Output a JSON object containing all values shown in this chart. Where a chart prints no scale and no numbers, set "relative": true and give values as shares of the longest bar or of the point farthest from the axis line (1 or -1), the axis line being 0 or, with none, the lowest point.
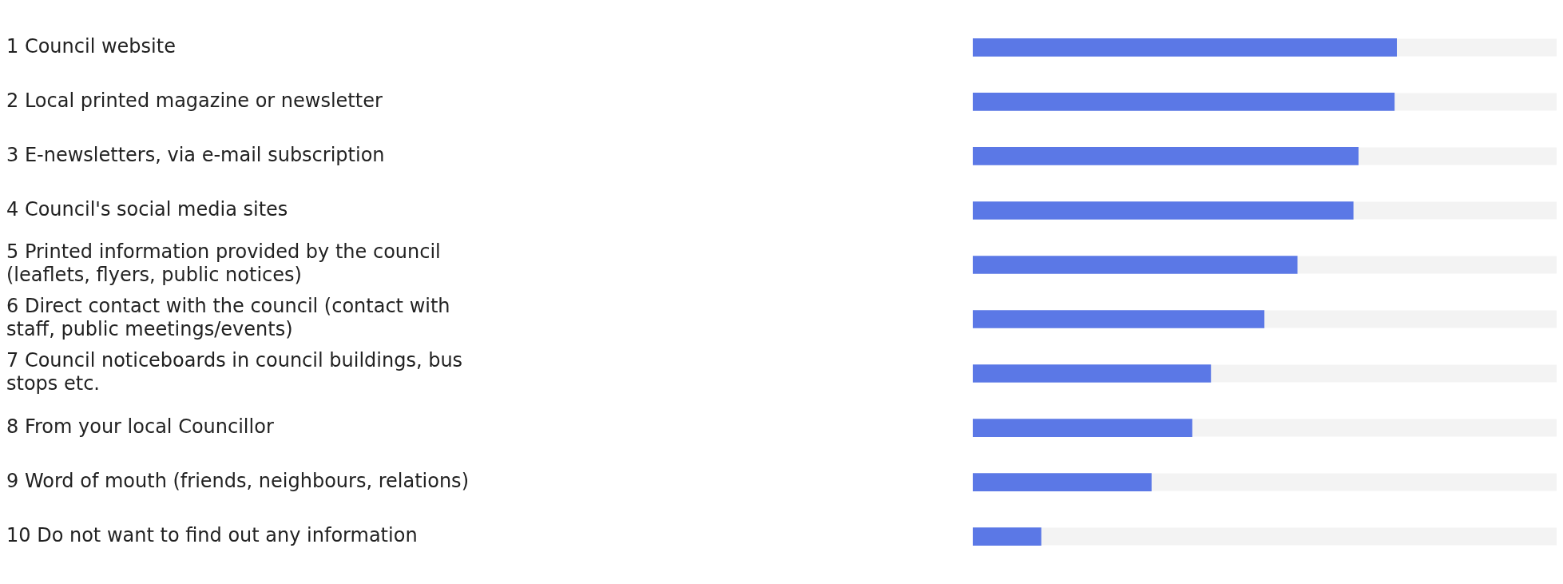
{
  "chart_data": {
    "type": "bar",
    "orientation": "horizontal",
    "relative": true,
    "categories": [
      "1 Council website",
      "2 Local printed magazine or newsletter",
      "3 E-newsletters, via e-mail subscription",
      "4 Council's social media sites",
      "5 Printed information provided by the council (leaflets, flyers, public notices)",
      "6 Direct contact with the council (contact with staff, public meetings/events)",
      "7 Council noticeboards in council buildings, bus stops etc.",
      "8 From your local Councillor",
      "9 Word of mouth (friends, neighbours, relations)",
      "10 Do not want to find out any information"
    ],
    "values": [
      1,
      0.994,
      0.909,
      0.897,
      0.765,
      0.687,
      0.561,
      0.517,
      0.421,
      0.161
    ],
    "color": "#5b78e6"
  }
}
